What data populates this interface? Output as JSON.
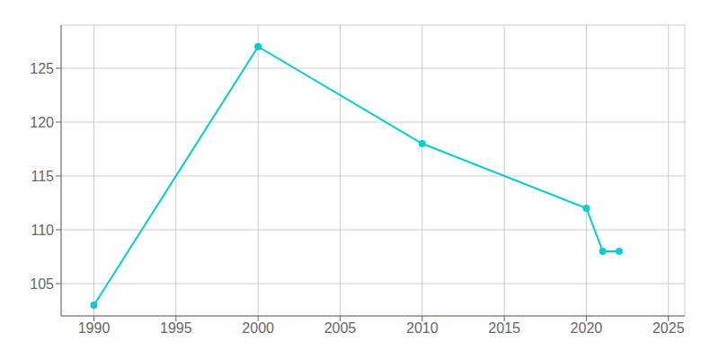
{
  "chart_data": {
    "type": "line",
    "x": [
      1990,
      2000,
      2010,
      2020,
      2021,
      2022
    ],
    "values": [
      103,
      127,
      118,
      112,
      108,
      108
    ],
    "color": "#00CED1",
    "marker": "circle",
    "xlim": [
      1988,
      2026
    ],
    "ylim": [
      102,
      129
    ],
    "xticks": [
      1990,
      1995,
      2000,
      2005,
      2010,
      2015,
      2020,
      2025
    ],
    "yticks": [
      105,
      110,
      115,
      120,
      125
    ],
    "grid": true
  }
}
